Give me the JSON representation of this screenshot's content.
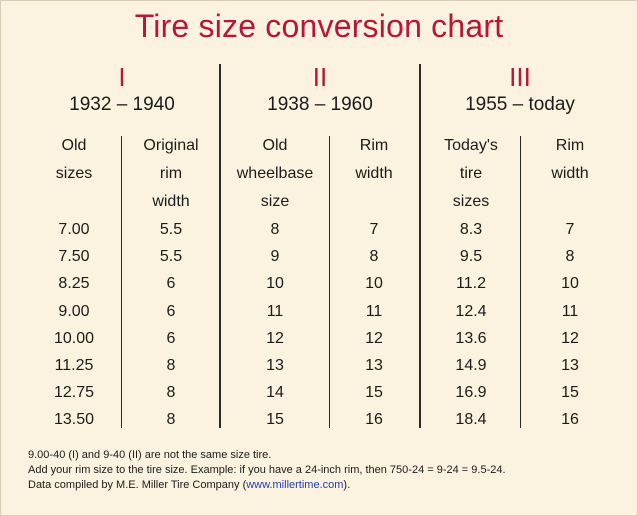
{
  "title": "Tire size conversion chart",
  "eras": [
    {
      "numeral": "I",
      "years": "1932 – 1940"
    },
    {
      "numeral": "II",
      "years": "1938 – 1960"
    },
    {
      "numeral": "III",
      "years": "1955 – today"
    }
  ],
  "columns": [
    {
      "header": [
        "Old",
        "sizes"
      ],
      "values": [
        "7.00",
        "7.50",
        "8.25",
        "9.00",
        "10.00",
        "11.25",
        "12.75",
        "13.50"
      ]
    },
    {
      "header": [
        "Original",
        "rim",
        "width"
      ],
      "values": [
        "5.5",
        "5.5",
        "6",
        "6",
        "6",
        "8",
        "8",
        "8"
      ]
    },
    {
      "header": [
        "Old",
        "wheelbase",
        "size"
      ],
      "values": [
        "8",
        "9",
        "10",
        "11",
        "12",
        "13",
        "14",
        "15"
      ]
    },
    {
      "header": [
        "Rim",
        "width"
      ],
      "values": [
        "7",
        "8",
        "10",
        "11",
        "12",
        "13",
        "15",
        "16"
      ]
    },
    {
      "header": [
        "Today's",
        "tire",
        "sizes"
      ],
      "values": [
        "8.3",
        "9.5",
        "11.2",
        "12.4",
        "13.6",
        "14.9",
        "16.9",
        "18.4"
      ]
    },
    {
      "header": [
        "Rim",
        "width"
      ],
      "values": [
        "7",
        "8",
        "10",
        "11",
        "12",
        "13",
        "15",
        "16"
      ]
    }
  ],
  "notes": {
    "line1": "9.00-40 (I) and 9-40 (II) are not the same size tire.",
    "line2": "Add your rim size to the tire size. Example: if you have a 24-inch rim, then 750-24 = 9-24 = 9.5-24.",
    "line3_prefix": "Data compiled by M.E. Miller Tire Company (",
    "line3_link": "www.millertime.com",
    "line3_suffix": ")."
  }
}
